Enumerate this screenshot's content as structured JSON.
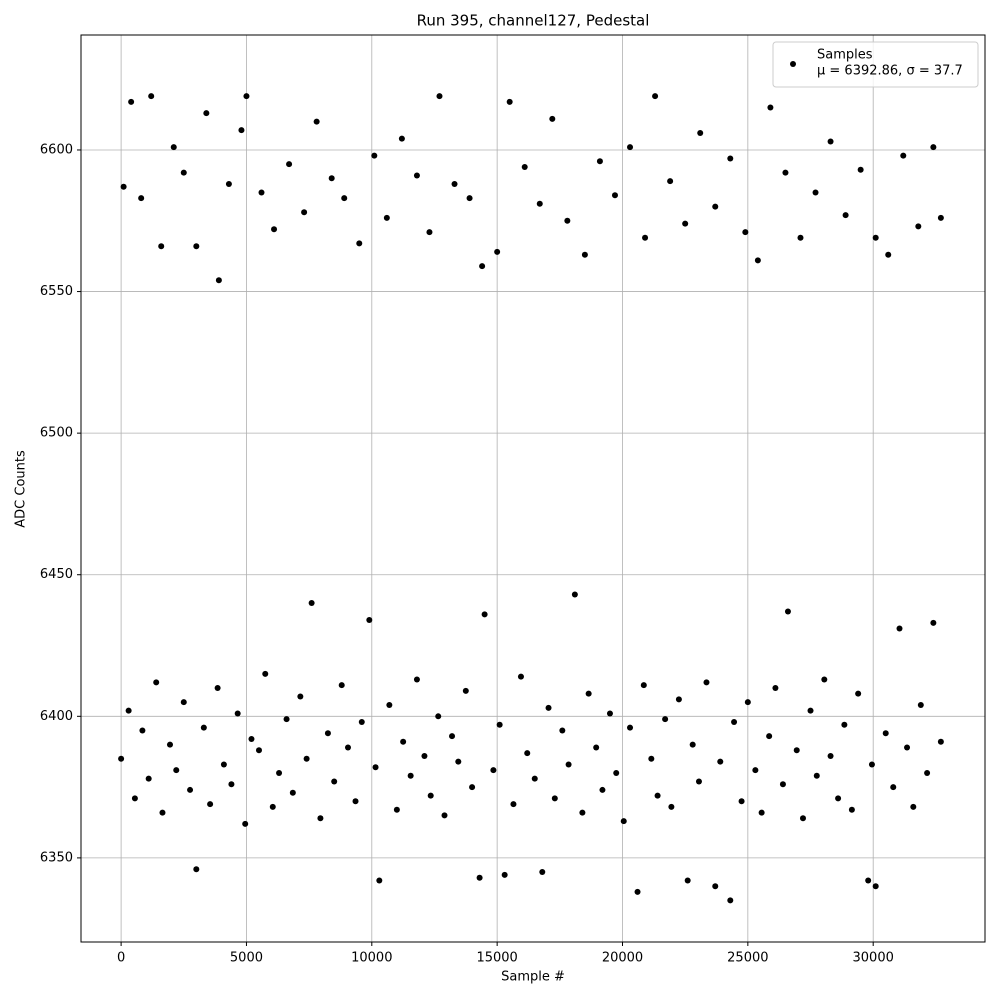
{
  "chart_data": {
    "type": "scatter",
    "title": "Run 395, channel127, Pedestal",
    "x_label": "Sample #",
    "y_label": "ADC Counts",
    "legend_note": "μ = 6392.86, σ = 37.7",
    "legend": "upper right",
    "grid": true,
    "xlim": [
      -1600,
      34460
    ],
    "ylim": [
      6320.3,
      6640.6
    ],
    "xticks": [
      0,
      5000,
      10000,
      15000,
      20000,
      25000,
      30000
    ],
    "yticks": [
      6350,
      6400,
      6450,
      6500,
      6550,
      6600
    ],
    "series": [
      {
        "name": "Samples",
        "color": "#000000",
        "x": [
          100,
          400,
          800,
          1200,
          1600,
          2100,
          2500,
          3000,
          3400,
          3900,
          4300,
          4800,
          5000,
          5600,
          6100,
          6700,
          7300,
          7800,
          8400,
          8900,
          9500,
          10100,
          10600,
          11200,
          11800,
          12300,
          12700,
          13300,
          13900,
          14400,
          15000,
          15500,
          16100,
          16700,
          17200,
          17800,
          18500,
          19100,
          19700,
          20300,
          20900,
          21300,
          21900,
          22500,
          23100,
          23700,
          24300,
          24900,
          25400,
          25900,
          26500,
          27100,
          27700,
          28300,
          28900,
          29500,
          30100,
          30600,
          31200,
          31800,
          32400,
          32700,
          0,
          300,
          550,
          850,
          1100,
          1400,
          1650,
          1950,
          2200,
          2500,
          2750,
          3000,
          3300,
          3550,
          3850,
          4100,
          4400,
          4650,
          4950,
          5200,
          5500,
          5750,
          6050,
          6300,
          6600,
          6850,
          7150,
          7400,
          7600,
          7950,
          8250,
          8500,
          8800,
          9050,
          9350,
          9600,
          9900,
          10150,
          10300,
          10700,
          11000,
          11250,
          11550,
          11800,
          12100,
          12350,
          12650,
          12900,
          13200,
          13450,
          13750,
          14000,
          14300,
          14500,
          14850,
          15100,
          15300,
          15650,
          15950,
          16200,
          16500,
          16800,
          17050,
          17300,
          17600,
          17850,
          18100,
          18400,
          18650,
          18950,
          19200,
          19500,
          19750,
          20050,
          20300,
          20600,
          20850,
          21150,
          21400,
          21700,
          21950,
          22250,
          22600,
          22800,
          23050,
          23350,
          23700,
          23900,
          24300,
          24450,
          24750,
          25000,
          25300,
          25550,
          25850,
          26100,
          26400,
          26600,
          26950,
          27200,
          27500,
          27750,
          28050,
          28300,
          28600,
          28850,
          29150,
          29400,
          29800,
          29950,
          30100,
          30500,
          30800,
          31050,
          31350,
          31600,
          31900,
          32150,
          32400,
          32700
        ],
        "values": [
          6587,
          6617,
          6583,
          6619,
          6566,
          6601,
          6592,
          6566,
          6613,
          6554,
          6588,
          6607,
          6619,
          6585,
          6572,
          6595,
          6578,
          6610,
          6590,
          6583,
          6567,
          6598,
          6576,
          6604,
          6591,
          6571,
          6619,
          6588,
          6583,
          6559,
          6564,
          6617,
          6594,
          6581,
          6611,
          6575,
          6563,
          6596,
          6584,
          6601,
          6569,
          6619,
          6589,
          6574,
          6606,
          6580,
          6597,
          6571,
          6561,
          6615,
          6592,
          6569,
          6585,
          6603,
          6577,
          6593,
          6569,
          6563,
          6598,
          6573,
          6601,
          6576,
          6385,
          6402,
          6371,
          6395,
          6378,
          6412,
          6366,
          6390,
          6381,
          6405,
          6374,
          6346,
          6396,
          6369,
          6410,
          6383,
          6376,
          6401,
          6362,
          6392,
          6388,
          6415,
          6368,
          6380,
          6399,
          6373,
          6407,
          6385,
          6440,
          6364,
          6394,
          6377,
          6411,
          6389,
          6370,
          6398,
          6434,
          6382,
          6342,
          6404,
          6367,
          6391,
          6379,
          6413,
          6386,
          6372,
          6400,
          6365,
          6393,
          6384,
          6409,
          6375,
          6343,
          6436,
          6381,
          6397,
          6344,
          6369,
          6414,
          6387,
          6378,
          6345,
          6403,
          6371,
          6395,
          6383,
          6443,
          6366,
          6408,
          6389,
          6374,
          6401,
          6380,
          6363,
          6396,
          6338,
          6411,
          6385,
          6372,
          6399,
          6368,
          6406,
          6342,
          6390,
          6377,
          6412,
          6340,
          6384,
          6335,
          6398,
          6370,
          6405,
          6381,
          6366,
          6393,
          6410,
          6376,
          6437,
          6388,
          6364,
          6402,
          6379,
          6413,
          6386,
          6371,
          6397,
          6367,
          6408,
          6342,
          6383,
          6340,
          6394,
          6375,
          6431,
          6389,
          6368,
          6404,
          6380,
          6433,
          6391
        ]
      }
    ]
  }
}
